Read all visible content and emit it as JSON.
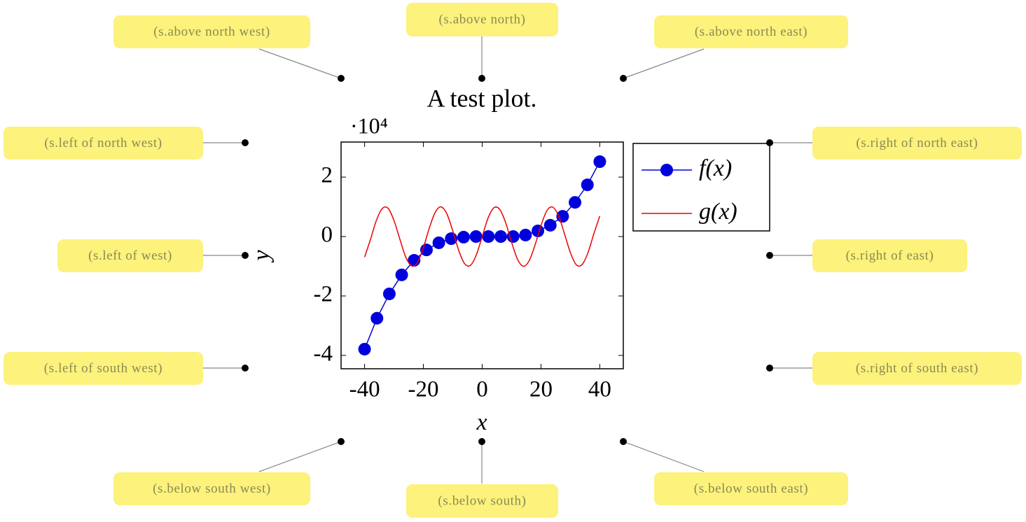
{
  "chart_data": {
    "type": "line",
    "title": "A test plot.",
    "y_multiplier": "·10⁴",
    "x_label": "x",
    "y_label": "y",
    "xlim": [
      -48,
      48
    ],
    "ylim": [
      -4.45,
      3.18
    ],
    "xticks": [
      -40,
      -20,
      0,
      20,
      40
    ],
    "yticks": [
      -4,
      -2,
      0,
      2
    ],
    "legend": "outer north east",
    "series": [
      {
        "name": "f(x)",
        "color": "#0000dd",
        "marker": true,
        "x": [
          -40,
          -35.79,
          -31.58,
          -27.37,
          -23.16,
          -18.95,
          -14.74,
          -10.53,
          -6.32,
          -2.11,
          2.11,
          6.32,
          10.53,
          14.74,
          18.95,
          23.16,
          27.37,
          31.58,
          35.79,
          40
        ],
        "values": [
          -3.79,
          -2.75,
          -1.93,
          -1.29,
          -0.8,
          -0.45,
          -0.21,
          -0.07,
          -0.02,
          0,
          0,
          0,
          0,
          0.05,
          0.19,
          0.38,
          0.68,
          1.15,
          1.74,
          2.52
        ]
      },
      {
        "name": "g(x)",
        "color": "#ee0000",
        "marker": false,
        "x": [
          -40,
          -38,
          -36,
          -34,
          -32,
          -30,
          -28,
          -26,
          -24,
          -22,
          -20,
          -18,
          -16,
          -14,
          -12,
          -10,
          -8,
          -6,
          -4,
          -2,
          0,
          2,
          4,
          6,
          8,
          10,
          12,
          14,
          16,
          18,
          20,
          22,
          24,
          26,
          28,
          30,
          32,
          34,
          36,
          38,
          40
        ],
        "values": [
          -0.69,
          -0.1,
          0.54,
          0.94,
          0.95,
          0.54,
          -0.09,
          -0.69,
          -0.99,
          -0.87,
          -0.37,
          0.28,
          0.81,
          1.0,
          0.76,
          0.19,
          -0.46,
          -0.91,
          -0.97,
          -0.62,
          0,
          0.62,
          0.97,
          0.91,
          0.46,
          -0.19,
          -0.76,
          -1.0,
          -0.81,
          -0.28,
          0.37,
          0.87,
          0.99,
          0.69,
          0.09,
          -0.54,
          -0.95,
          -0.94,
          -0.54,
          0.1,
          0.69
        ]
      }
    ],
    "annotations": [
      "(s.above north west)",
      "(s.above north)",
      "(s.above north east)",
      "(s.left of north west)",
      "(s.left of west)",
      "(s.left of south west)",
      "(s.right of north east)",
      "(s.right of east)",
      "(s.right of south east)",
      "(s.below south west)",
      "(s.below south)",
      "(s.below south east)"
    ]
  }
}
